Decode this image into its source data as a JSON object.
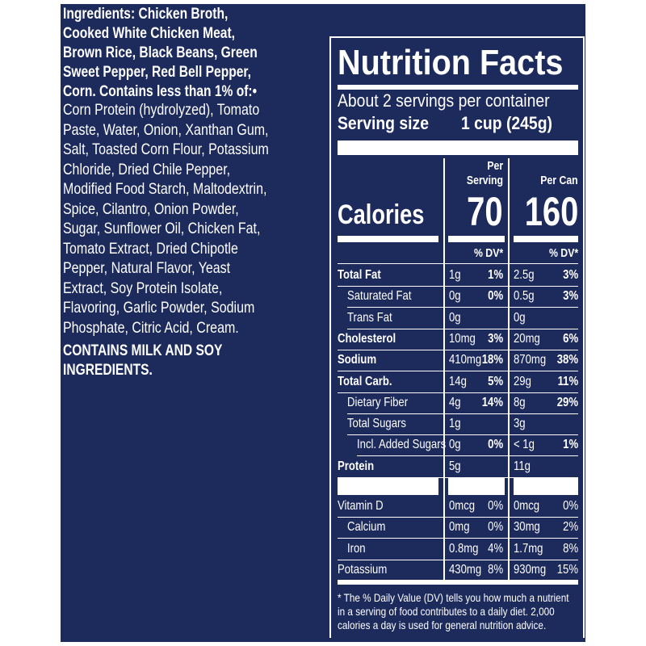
{
  "ingredients": {
    "bold_lines": [
      "Ingredients: Chicken Broth,",
      "Cooked White Chicken Meat,",
      "Brown Rice, Black Beans, Green",
      "Sweet Pepper, Red Bell Pepper,",
      "Corn. Contains less than 1% of:•"
    ],
    "lines": [
      "Corn Protein (hydrolyzed), Tomato",
      "Paste, Water, Onion, Xanthan Gum,",
      "Salt, Toasted Corn Flour, Potassium",
      "Chloride, Dried Chile Pepper,",
      "Modified Food Starch, Maltodextrin,",
      "Spice, Cilantro, Onion Powder,",
      "Sugar, Sunflower Oil, Chicken Fat,",
      "Tomato Extract, Dried Chipotle",
      "Pepper, Natural Flavor, Yeast",
      "Extract, Soy Protein Isolate,",
      "Flavoring, Garlic Powder, Sodium",
      "Phosphate, Citric Acid, Cream."
    ],
    "allergen_lines": [
      "CONTAINS MILK AND SOY",
      "INGREDIENTS."
    ]
  },
  "nutrition": {
    "title": "Nutrition Facts",
    "servings": "About 2 servings per container",
    "serving_size_label": "Serving size",
    "serving_size": "1 cup (245g)",
    "per_serving_lines": [
      "Per",
      "Serving"
    ],
    "per_can": "Per Can",
    "calories_label": "Calories",
    "calories_serving": "70",
    "calories_can": "160",
    "dv_header": "% DV*",
    "rows": [
      {
        "label": "Total Fat",
        "serving_amount": "1g",
        "serving_dv": "1%",
        "can_amount": "2.5g",
        "can_dv": "3%"
      },
      {
        "label": "Saturated Fat",
        "serving_amount": "0g",
        "serving_dv": "0%",
        "can_amount": "0.5g",
        "can_dv": "3%"
      },
      {
        "label": "Trans Fat",
        "serving_amount": "0g",
        "can_amount": "0g"
      },
      {
        "label": "Cholesterol",
        "serving_amount": "10mg",
        "serving_dv": "3%",
        "can_amount": "20mg",
        "can_dv": "6%"
      },
      {
        "label": "Sodium",
        "serving_amount": "410mg",
        "serving_dv": "18%",
        "can_amount": "870mg",
        "can_dv": "38%"
      },
      {
        "label": "Total Carb.",
        "serving_amount": "14g",
        "serving_dv": "5%",
        "can_amount": "29g",
        "can_dv": "11%"
      },
      {
        "label": "Dietary Fiber",
        "serving_amount": "4g",
        "serving_dv": "14%",
        "can_amount": "8g",
        "can_dv": "29%"
      },
      {
        "label": "Total Sugars",
        "serving_amount": "1g",
        "can_amount": "3g"
      },
      {
        "label": "Incl. Added Sugars",
        "serving_amount": "0g",
        "serving_dv": "0%",
        "can_amount": "< 1g",
        "can_dv": "1%"
      },
      {
        "label": "Protein",
        "serving_amount": "5g",
        "can_amount": "11g"
      }
    ],
    "vitamins": [
      {
        "label": "Vitamin D",
        "serving_amount": "0mcg",
        "serving_dv": "0%",
        "can_amount": "0mcg",
        "can_dv": "0%"
      },
      {
        "label": "Calcium",
        "serving_amount": "0mg",
        "serving_dv": "0%",
        "can_amount": "30mg",
        "can_dv": "2%"
      },
      {
        "label": "Iron",
        "serving_amount": "0.8mg",
        "serving_dv": "4%",
        "can_amount": "1.7mg",
        "can_dv": "8%"
      },
      {
        "label": "Potassium",
        "serving_amount": "430mg",
        "serving_dv": "8%",
        "can_amount": "930mg",
        "can_dv": "15%"
      }
    ],
    "footnote_lines": [
      "* The % Daily Value (DV) tells you how much a nutrient",
      "in a serving of food contributes to a daily diet. 2,000",
      "calories a day is used for general nutrition advice."
    ]
  }
}
